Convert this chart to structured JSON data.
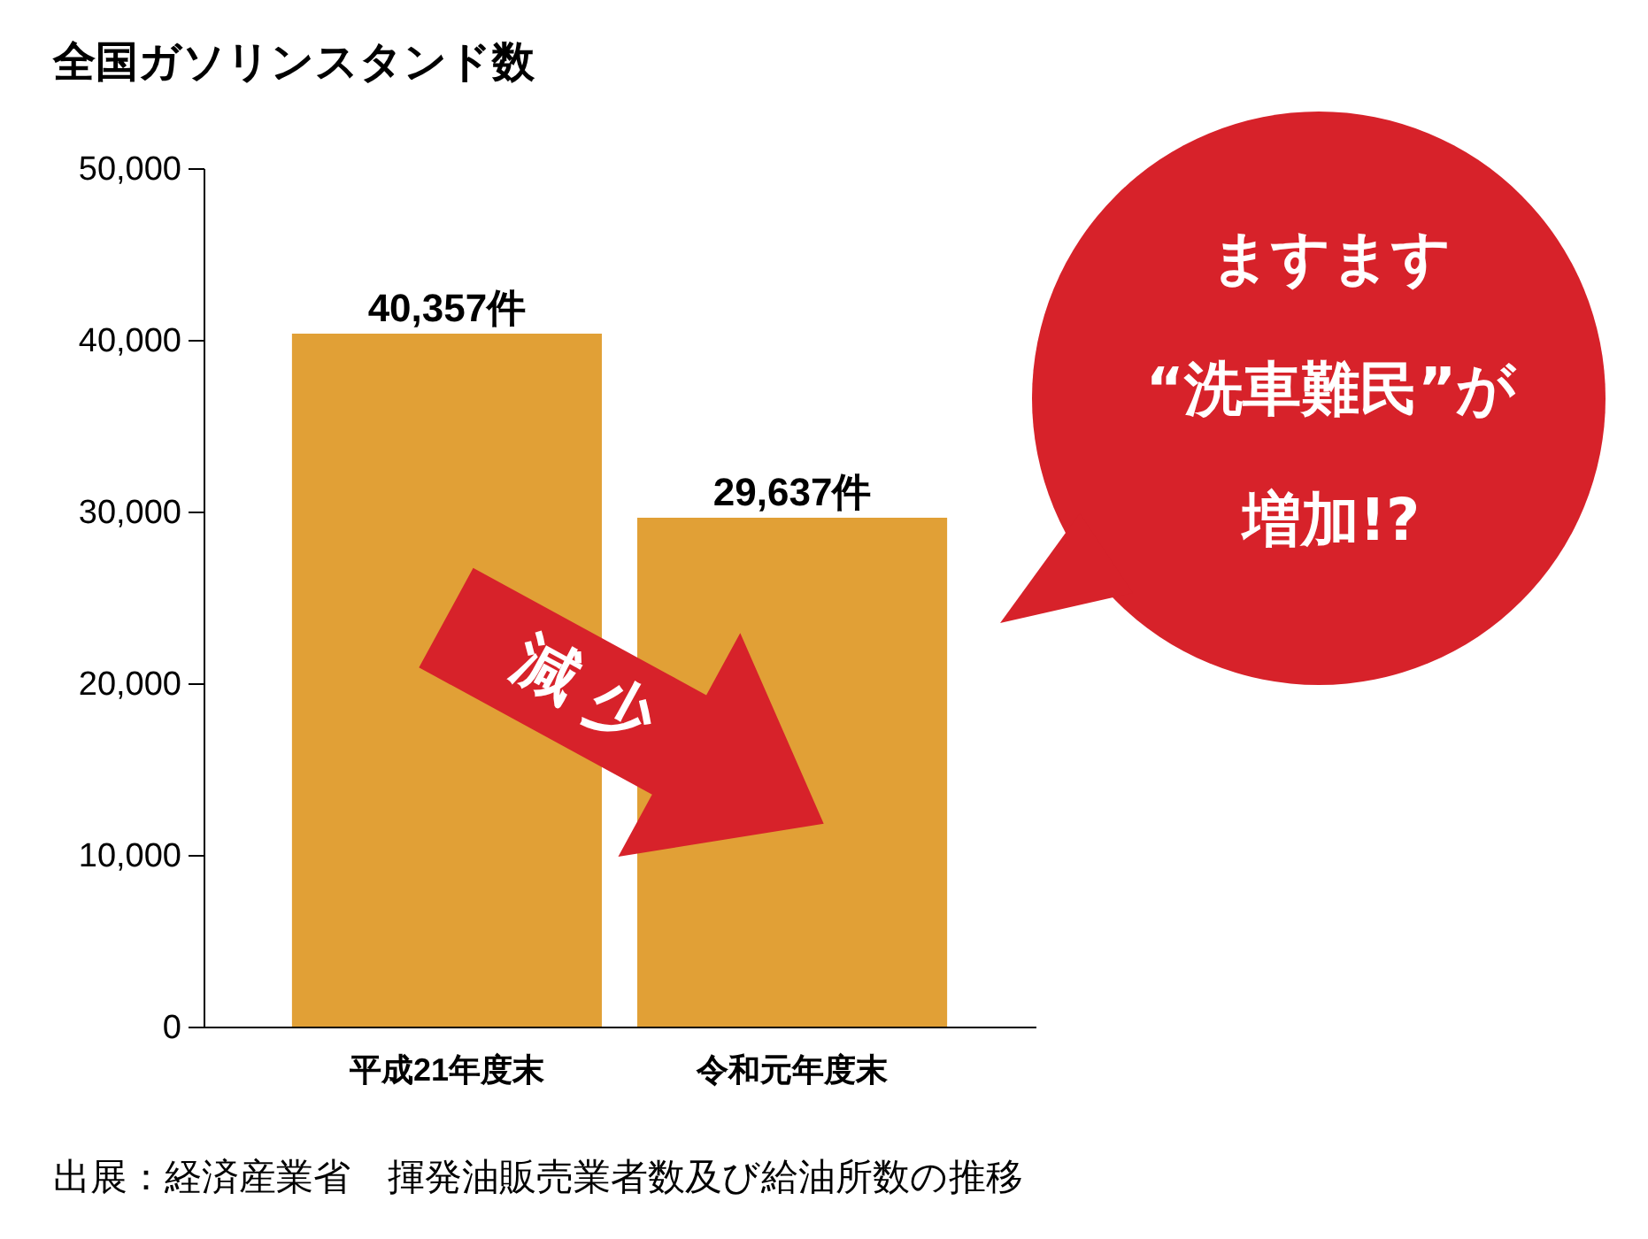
{
  "chart_data": {
    "type": "bar",
    "title": "全国ガソリンスタンド数",
    "categories": [
      "平成21年度末",
      "令和元年度末"
    ],
    "values": [
      40357,
      29637
    ],
    "value_labels": [
      "40,357件",
      "29,637件"
    ],
    "color": "#e1a036",
    "ylim": [
      0,
      50000
    ],
    "yticks": [
      0,
      {
        "value": 10000,
        "label": "10,000"
      },
      {
        "value": 20000,
        "label": "20,000"
      },
      {
        "value": 30000,
        "label": "30,000"
      },
      {
        "value": 40000,
        "label": "40,000"
      },
      {
        "value": 50000,
        "label": "50,000"
      }
    ],
    "grid": false,
    "annotations": [
      "減少",
      "ますます",
      "“洗車難民”が",
      "増加!?",
      "出展：経済産業省　揮発油販売業者数及び給油所数の推移"
    ]
  }
}
